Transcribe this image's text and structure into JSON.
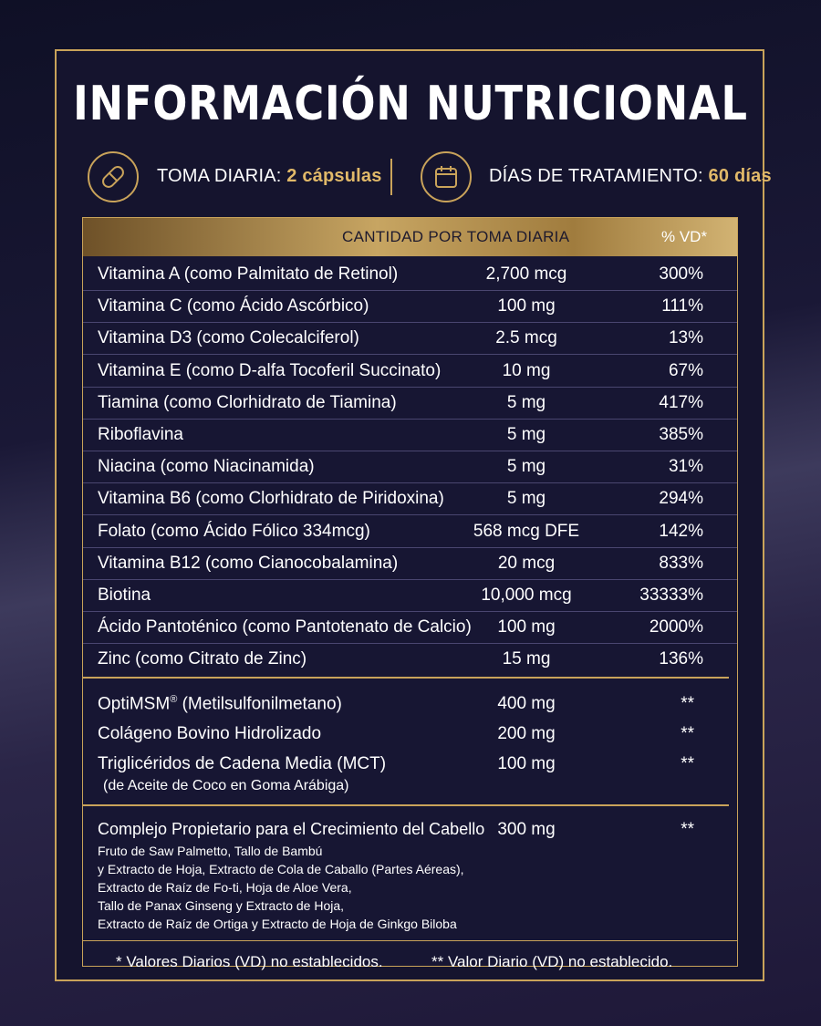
{
  "title": "INFORMACIÓN NUTRICIONAL",
  "daily_intake": {
    "label": "TOMA DIARIA:",
    "value": "2 cápsulas"
  },
  "treatment": {
    "label": "DÍAS DE TRATAMIENTO:",
    "value": "60 días"
  },
  "icons": {
    "capsule": "capsule-icon",
    "calendar": "calendar-icon"
  },
  "colors": {
    "gold": "#c9a35a",
    "gold_text": "#e1b969",
    "background": "#15142e"
  },
  "table": {
    "header_amount": "CANTIDAD POR TOMA DIARIA",
    "header_vd": "% VD*",
    "rows": [
      {
        "name": "Vitamina A (como Palmitato de Retinol)",
        "amount": "2,700 mcg",
        "vd": "300%"
      },
      {
        "name": "Vitamina C (como Ácido Ascórbico)",
        "amount": "100 mg",
        "vd": "111%"
      },
      {
        "name": "Vitamina D3 (como Colecalciferol)",
        "amount": "2.5 mcg",
        "vd": "13%"
      },
      {
        "name": "Vitamina E (como D-alfa Tocoferil Succinato)",
        "amount": "10 mg",
        "vd": "67%"
      },
      {
        "name": "Tiamina (como Clorhidrato de Tiamina)",
        "amount": "5 mg",
        "vd": "417%"
      },
      {
        "name": "Riboflavina",
        "amount": "5 mg",
        "vd": "385%"
      },
      {
        "name": "Niacina (como Niacinamida)",
        "amount": "5 mg",
        "vd": "31%"
      },
      {
        "name": "Vitamina B6 (como Clorhidrato de Piridoxina)",
        "amount": "5 mg",
        "vd": "294%"
      },
      {
        "name": "Folato (como Ácido Fólico 334mcg)",
        "amount": "568 mcg DFE",
        "vd": "142%"
      },
      {
        "name": "Vitamina B12 (como Cianocobalamina)",
        "amount": "20 mcg",
        "vd": "833%"
      },
      {
        "name": "Biotina",
        "amount": "10,000 mcg",
        "vd": "33333%"
      },
      {
        "name": "Ácido Pantoténico (como Pantotenato de Calcio)",
        "amount": "100 mg",
        "vd": "2000%"
      },
      {
        "name": "Zinc (como Citrato de Zinc)",
        "amount": "15 mg",
        "vd": "136%"
      }
    ],
    "others": [
      {
        "name": "OptiMSM",
        "reg": "®",
        "name_rest": " (Metilsulfonilmetano)",
        "amount": "400 mg",
        "vd": "**"
      },
      {
        "name": "Colágeno Bovino Hidrolizado",
        "amount": "200 mg",
        "vd": "**"
      },
      {
        "name": "Triglicéridos de Cadena Media (MCT)",
        "sub": "(de Aceite de Coco en Goma Arábiga)",
        "amount": "100 mg",
        "vd": "**"
      }
    ],
    "blend": {
      "name": "Complejo Propietario para el Crecimiento del Cabello",
      "amount": "300 mg",
      "vd": "**",
      "lines": [
        "Fruto de Saw Palmetto, Tallo de Bambú",
        "y Extracto de Hoja, Extracto de Cola de Caballo (Partes Aéreas),",
        "Extracto de Raíz de Fo-ti, Hoja de Aloe Vera,",
        "Tallo de Panax Ginseng y Extracto de Hoja,",
        "Extracto de Raíz de Ortiga y Extracto de Hoja de Ginkgo Biloba"
      ]
    },
    "footnote_1": "* Valores Diarios (VD) no establecidos.",
    "footnote_2": "** Valor Diario (VD) no establecido."
  }
}
